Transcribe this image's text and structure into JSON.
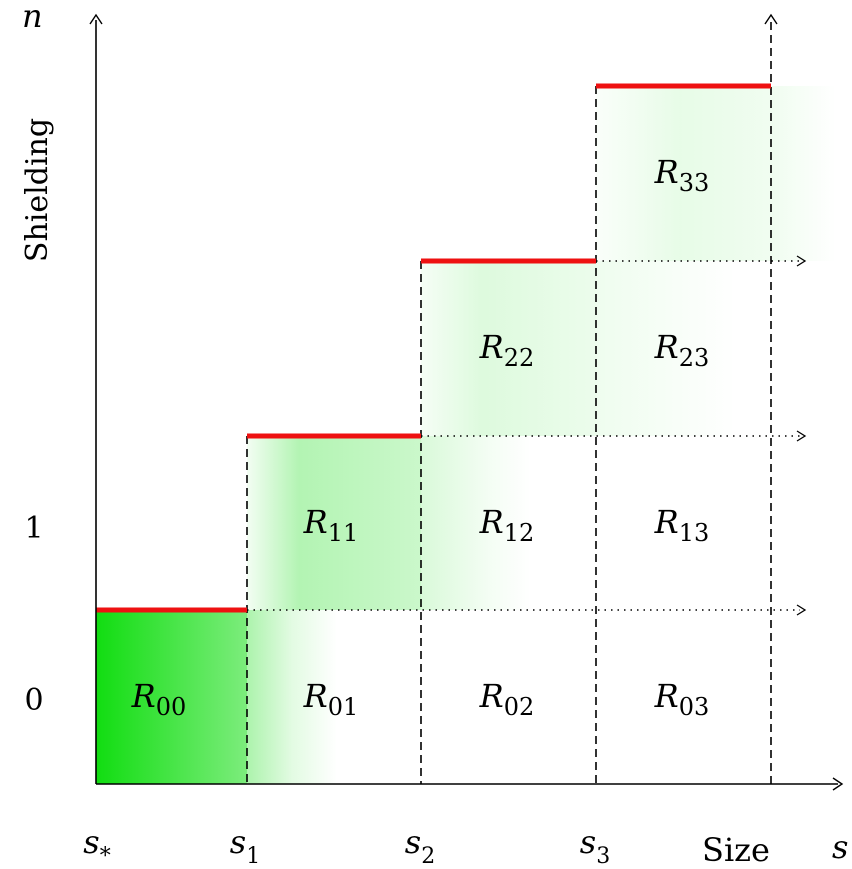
{
  "axes": {
    "y_var": "n",
    "y_label": "Shielding",
    "y_ticks": [
      "1",
      "0"
    ],
    "x_var": "s",
    "x_label": "Size",
    "x_ticks": [
      {
        "base": "s",
        "sub": "*"
      },
      {
        "base": "s",
        "sub": "1"
      },
      {
        "base": "s",
        "sub": "2"
      },
      {
        "base": "s",
        "sub": "3"
      }
    ]
  },
  "regions": [
    {
      "base": "R",
      "sub": "00"
    },
    {
      "base": "R",
      "sub": "01"
    },
    {
      "base": "R",
      "sub": "02"
    },
    {
      "base": "R",
      "sub": "03"
    },
    {
      "base": "R",
      "sub": "11"
    },
    {
      "base": "R",
      "sub": "12"
    },
    {
      "base": "R",
      "sub": "13"
    },
    {
      "base": "R",
      "sub": "22"
    },
    {
      "base": "R",
      "sub": "23"
    },
    {
      "base": "R",
      "sub": "33"
    }
  ],
  "colors": {
    "axis": "#000000",
    "boundary": "#ee1111",
    "fill": "#11dd11"
  }
}
